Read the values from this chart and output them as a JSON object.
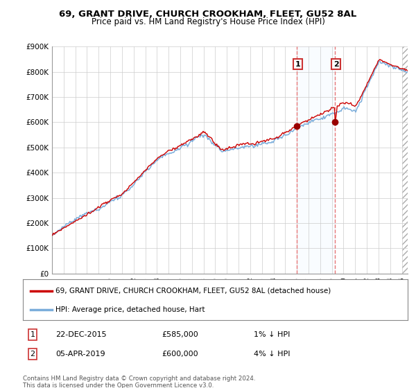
{
  "title": "69, GRANT DRIVE, CHURCH CROOKHAM, FLEET, GU52 8AL",
  "subtitle": "Price paid vs. HM Land Registry's House Price Index (HPI)",
  "ylabel_vals": [
    "£0",
    "£100K",
    "£200K",
    "£300K",
    "£400K",
    "£500K",
    "£600K",
    "£700K",
    "£800K",
    "£900K"
  ],
  "ylim": [
    0,
    900000
  ],
  "yticks": [
    0,
    100000,
    200000,
    300000,
    400000,
    500000,
    600000,
    700000,
    800000,
    900000
  ],
  "sale1_date": "22-DEC-2015",
  "sale1_price": 585000,
  "sale1_t": 2015.958,
  "sale1_hpi_str": "1% ↓ HPI",
  "sale2_date": "05-APR-2019",
  "sale2_price": 600000,
  "sale2_t": 2019.26,
  "sale2_hpi_str": "4% ↓ HPI",
  "legend_line1": "69, GRANT DRIVE, CHURCH CROOKHAM, FLEET, GU52 8AL (detached house)",
  "legend_line2": "HPI: Average price, detached house, Hart",
  "footer": "Contains HM Land Registry data © Crown copyright and database right 2024.\nThis data is licensed under the Open Government Licence v3.0.",
  "line_color_red": "#cc0000",
  "line_color_blue": "#7aaddb",
  "background_color": "#ffffff",
  "grid_color": "#cccccc",
  "sale_marker_color": "#990000",
  "sale_vline_color": "#e87878",
  "annotation_box_color": "#cc3333",
  "shaded_region_color": "#ddeeff",
  "xlim_start": 1995,
  "xlim_end": 2025.5
}
